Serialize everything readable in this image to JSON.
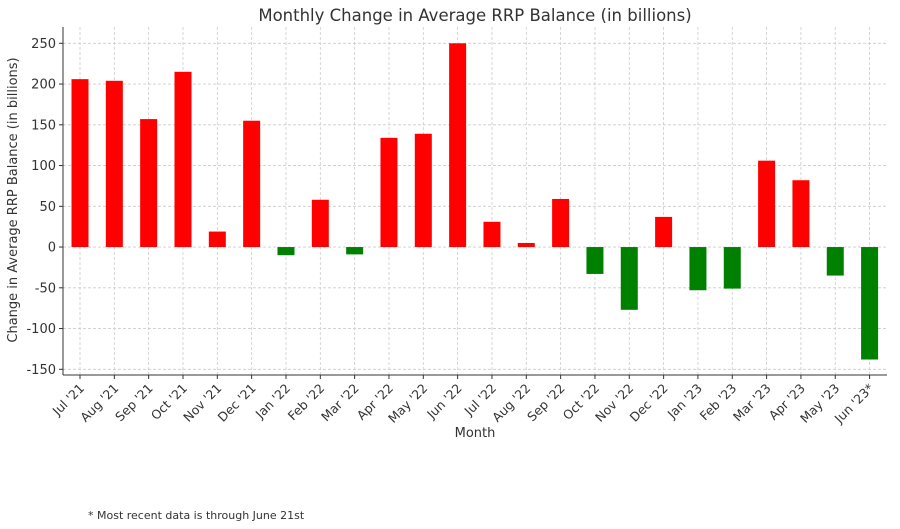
{
  "chart_data": {
    "type": "bar",
    "title": "Monthly Change in Average RRP Balance (in billions)",
    "xlabel": "Month",
    "ylabel": "Change in Average RRP Balance (in billions)",
    "ylim": [
      -157,
      270
    ],
    "yticks": [
      -150,
      -100,
      -50,
      0,
      50,
      100,
      150,
      200,
      250
    ],
    "grid": true,
    "categories": [
      "Jul '21",
      "Aug '21",
      "Sep '21",
      "Oct '21",
      "Nov '21",
      "Dec '21",
      "Jan '22",
      "Feb '22",
      "Mar '22",
      "Apr '22",
      "May '22",
      "Jun '22",
      "Jul '22",
      "Aug '22",
      "Sep '22",
      "Oct '22",
      "Nov '22",
      "Dec '22",
      "Jan '23",
      "Feb '23",
      "Mar '23",
      "Apr '23",
      "May '23",
      "Jun '23*"
    ],
    "values": [
      206,
      204,
      157,
      215,
      19,
      155,
      -10,
      58,
      -9,
      134,
      139,
      250,
      31,
      5,
      59,
      -33,
      -77,
      37,
      -53,
      -51,
      106,
      82,
      -35,
      -138
    ],
    "colors": {
      "positive": "#ff0000",
      "negative": "#008000"
    }
  },
  "footnote": "* Most recent data is through June 21st"
}
